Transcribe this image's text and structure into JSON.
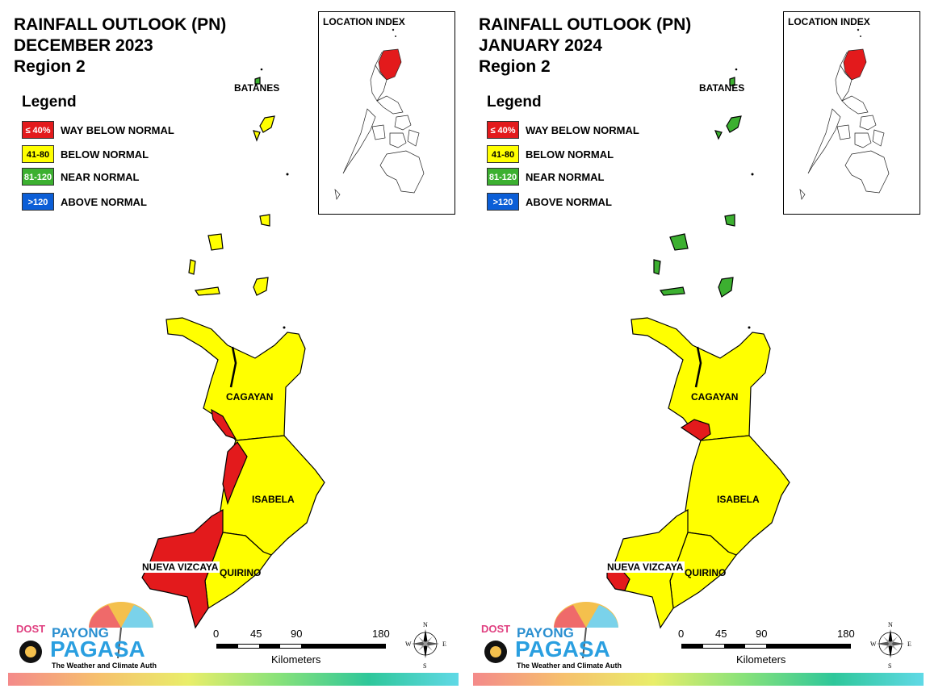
{
  "legend": {
    "title": "Legend",
    "items": [
      {
        "range": "≤ 40%",
        "label": "WAY BELOW NORMAL",
        "color": "#e31a1c",
        "text_color": "#ffffff"
      },
      {
        "range": "41-80",
        "label": "BELOW NORMAL",
        "color": "#ffff00",
        "text_color": "#000000"
      },
      {
        "range": "81-120",
        "label": "NEAR NORMAL",
        "color": "#3cb030",
        "text_color": "#ffffff"
      },
      {
        "range": ">120",
        "label": "ABOVE NORMAL",
        "color": "#0b5ed7",
        "text_color": "#ffffff"
      }
    ]
  },
  "inset_title": "LOCATION INDEX",
  "scale": {
    "ticks": [
      "0",
      "45",
      "90",
      "180"
    ],
    "units": "Kilometers"
  },
  "compass": {
    "n": "N",
    "s": "S",
    "e": "E",
    "w": "W"
  },
  "logo": {
    "dost": "DOST",
    "payong": "PAYONG",
    "pagasa": "PAGASA",
    "tagline": "The Weather and Climate Authority"
  },
  "panels": [
    {
      "title_line1": "RAINFALL OUTLOOK (PN)",
      "title_line2": "DECEMBER 2023",
      "title_line3": "Region 2",
      "provinces": {
        "batanes": {
          "name": "BATANES",
          "category": "mixed (mostly below normal)"
        },
        "cagayan": {
          "name": "CAGAYAN",
          "category": "below normal"
        },
        "isabela": {
          "name": "ISABELA",
          "category": "below normal"
        },
        "nueva_vizcaya": {
          "name": "NUEVA VIZCAYA",
          "category": "way below normal"
        },
        "quirino": {
          "name": "QUIRINO",
          "category": "below normal"
        }
      }
    },
    {
      "title_line1": "RAINFALL OUTLOOK (PN)",
      "title_line2": "JANUARY 2024",
      "title_line3": "Region 2",
      "provinces": {
        "batanes": {
          "name": "BATANES",
          "category": "near normal"
        },
        "cagayan": {
          "name": "CAGAYAN",
          "category": "below normal"
        },
        "isabela": {
          "name": "ISABELA",
          "category": "below normal"
        },
        "nueva_vizcaya": {
          "name": "NUEVA VIZCAYA",
          "category": "below normal"
        },
        "quirino": {
          "name": "QUIRINO",
          "category": "below normal"
        }
      }
    }
  ]
}
